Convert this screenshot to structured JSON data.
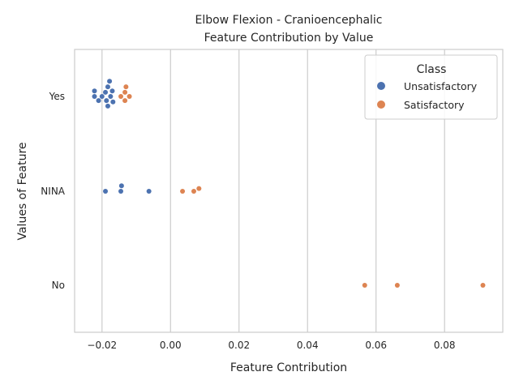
{
  "chart_data": {
    "type": "scatter",
    "title": "Elbow Flexion - Cranioencephalic",
    "subtitle": "Feature Contribution by Value",
    "xlabel": "Feature Contribution",
    "ylabel": "Values of Feature",
    "categories": [
      "Yes",
      "NINA",
      "No"
    ],
    "xlim": [
      -0.028,
      0.097
    ],
    "xticks": [
      -0.02,
      0.0,
      0.02,
      0.04,
      0.06,
      0.08
    ],
    "xtick_labels": [
      "−0.02",
      "0.00",
      "0.02",
      "0.04",
      "0.06",
      "0.08"
    ],
    "grid": "vertical",
    "legend": {
      "title": "Class",
      "placement": "top-right",
      "entries": [
        "Unsatisfactory",
        "Satisfactory"
      ]
    },
    "colors": {
      "Unsatisfactory": "#4c72b0",
      "Satisfactory": "#dd8452",
      "grid": "#cccccc",
      "frame": "#cccccc"
    },
    "series": [
      {
        "name": "Unsatisfactory",
        "points": [
          {
            "x": -0.0168,
            "y": "Yes"
          },
          {
            "x": -0.0183,
            "y": "Yes"
          },
          {
            "x": -0.0222,
            "y": "Yes"
          },
          {
            "x": -0.019,
            "y": "Yes"
          },
          {
            "x": -0.017,
            "y": "Yes"
          },
          {
            "x": -0.0222,
            "y": "Yes"
          },
          {
            "x": -0.02,
            "y": "Yes"
          },
          {
            "x": -0.0178,
            "y": "Yes"
          },
          {
            "x": -0.021,
            "y": "Yes"
          },
          {
            "x": -0.0187,
            "y": "Yes"
          },
          {
            "x": -0.0183,
            "y": "Yes"
          },
          {
            "x": -0.0175,
            "y": "Yes"
          },
          {
            "x": -0.0143,
            "y": "NINA"
          },
          {
            "x": -0.019,
            "y": "NINA"
          },
          {
            "x": -0.0145,
            "y": "NINA"
          },
          {
            "x": -0.0063,
            "y": "NINA"
          }
        ]
      },
      {
        "name": "Satisfactory",
        "points": [
          {
            "x": -0.012,
            "y": "Yes"
          },
          {
            "x": -0.0133,
            "y": "Yes"
          },
          {
            "x": -0.0145,
            "y": "Yes"
          },
          {
            "x": -0.0133,
            "y": "Yes"
          },
          {
            "x": -0.013,
            "y": "Yes"
          },
          {
            "x": 0.0083,
            "y": "NINA"
          },
          {
            "x": 0.0035,
            "y": "NINA"
          },
          {
            "x": 0.0068,
            "y": "NINA"
          },
          {
            "x": 0.0567,
            "y": "No"
          },
          {
            "x": 0.0662,
            "y": "No"
          },
          {
            "x": 0.0912,
            "y": "No"
          }
        ]
      }
    ]
  }
}
